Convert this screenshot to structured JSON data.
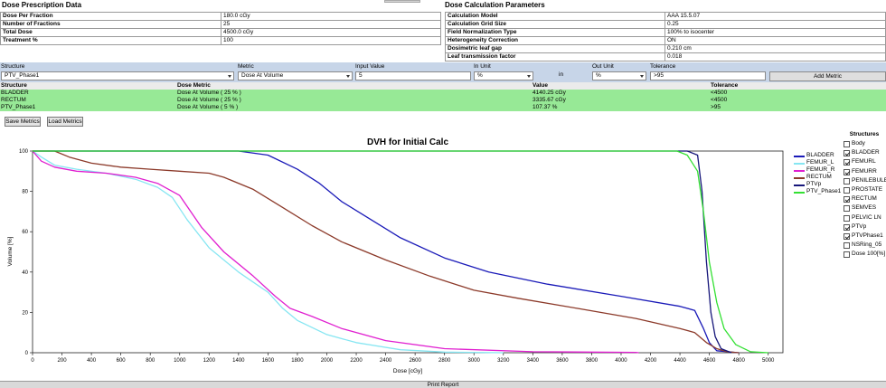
{
  "prescription": {
    "title": "Dose Prescription Data",
    "rows": [
      {
        "key": "Dose Per Fraction",
        "value": "180.0 cGy"
      },
      {
        "key": "Number of Fractions",
        "value": "25"
      },
      {
        "key": "Total Dose",
        "value": "4500.0 cGy"
      },
      {
        "key": "Treatment %",
        "value": "100"
      }
    ]
  },
  "calc_params": {
    "title": "Dose Calculation Parameters",
    "rows": [
      {
        "key": "Calculation Model",
        "value": "AAA 15.5.07"
      },
      {
        "key": "Calculation Grid Size",
        "value": "0.25"
      },
      {
        "key": "Field Normalization Type",
        "value": "100% to isocenter"
      },
      {
        "key": "Heterogeneity Correction",
        "value": "ON"
      },
      {
        "key": "Dosimetric leaf gap",
        "value": "0.210 cm"
      },
      {
        "key": "Leaf transmission factor",
        "value": "0.018"
      }
    ]
  },
  "metric_form": {
    "structure_label": "Structure",
    "structure_value": "PTV_Phase1",
    "metric_label": "Metric",
    "metric_value": "Dose At Volume",
    "input_label": "Input Value",
    "input_value": "5",
    "in_unit_label": "In Unit",
    "in_unit_value": "%",
    "in_text": "in",
    "out_unit_label": "Out Unit",
    "out_unit_value": "%",
    "tolerance_label": "Tolerance",
    "tolerance_value": ">95",
    "add_button": "Add Metric"
  },
  "results": {
    "headers": [
      "Structure",
      "Dose Metric",
      "Value",
      "Tolerance"
    ],
    "rows": [
      {
        "structure": "BLADDER",
        "metric": "Dose At Volume ( 25 % )",
        "value": "4140.25 cGy",
        "tolerance": "<4500"
      },
      {
        "structure": "RECTUM",
        "metric": "Dose At Volume ( 25 % )",
        "value": "3335.67 cGy",
        "tolerance": "<4500"
      },
      {
        "structure": "PTV_Phase1",
        "metric": "Dose At Volume ( 5 % )",
        "value": "107.37 %",
        "tolerance": ">95"
      }
    ]
  },
  "buttons": {
    "save": "Save Metrics",
    "load": "Load Metrics",
    "print": "Print Report"
  },
  "chart_data": {
    "type": "line",
    "title": "DVH for Initial Calc",
    "xlabel": "Dose [cGy]",
    "ylabel": "Volume [%]",
    "xlim": [
      0,
      5100
    ],
    "ylim": [
      0,
      100
    ],
    "xticks": [
      0,
      200,
      400,
      600,
      800,
      1000,
      1200,
      1400,
      1600,
      1800,
      2000,
      2200,
      2400,
      2600,
      2800,
      3000,
      3200,
      3400,
      3600,
      3800,
      4000,
      4200,
      4400,
      4600,
      4800,
      5000
    ],
    "yticks": [
      0,
      20,
      40,
      60,
      80,
      100
    ],
    "grid": false,
    "legend_position": "right",
    "series": [
      {
        "name": "BLADDER",
        "color": "#1a1ab8",
        "points": [
          [
            0,
            100
          ],
          [
            700,
            100
          ],
          [
            1400,
            100
          ],
          [
            1600,
            98
          ],
          [
            1800,
            91
          ],
          [
            1950,
            84
          ],
          [
            2100,
            75
          ],
          [
            2300,
            66
          ],
          [
            2500,
            57
          ],
          [
            2800,
            47
          ],
          [
            3100,
            40
          ],
          [
            3500,
            34
          ],
          [
            4000,
            28
          ],
          [
            4400,
            23
          ],
          [
            4500,
            21
          ],
          [
            4560,
            12
          ],
          [
            4600,
            5
          ],
          [
            4650,
            1
          ],
          [
            4800,
            0
          ]
        ]
      },
      {
        "name": "FEMUR_L",
        "color": "#86e6f2",
        "points": [
          [
            0,
            100
          ],
          [
            60,
            97
          ],
          [
            150,
            93
          ],
          [
            300,
            91
          ],
          [
            500,
            89
          ],
          [
            700,
            86
          ],
          [
            850,
            82
          ],
          [
            950,
            77
          ],
          [
            1050,
            66
          ],
          [
            1200,
            52
          ],
          [
            1400,
            40
          ],
          [
            1600,
            30
          ],
          [
            1700,
            22
          ],
          [
            1800,
            16
          ],
          [
            2000,
            9
          ],
          [
            2200,
            5
          ],
          [
            2500,
            1.5
          ],
          [
            2800,
            0.3
          ],
          [
            3200,
            0
          ]
        ]
      },
      {
        "name": "FEMUR_R",
        "color": "#e01fd0",
        "points": [
          [
            0,
            100
          ],
          [
            60,
            95
          ],
          [
            150,
            92
          ],
          [
            300,
            90
          ],
          [
            500,
            89
          ],
          [
            700,
            87
          ],
          [
            850,
            84
          ],
          [
            1000,
            78
          ],
          [
            1150,
            62
          ],
          [
            1300,
            50
          ],
          [
            1500,
            38
          ],
          [
            1650,
            28
          ],
          [
            1750,
            22
          ],
          [
            1900,
            18
          ],
          [
            2100,
            12
          ],
          [
            2400,
            6
          ],
          [
            2800,
            2
          ],
          [
            3400,
            0.5
          ],
          [
            4100,
            0.2
          ],
          [
            4120,
            0
          ]
        ]
      },
      {
        "name": "RECTUM",
        "color": "#8c3a2a",
        "points": [
          [
            0,
            100
          ],
          [
            150,
            100
          ],
          [
            250,
            97
          ],
          [
            400,
            94
          ],
          [
            600,
            92
          ],
          [
            800,
            91
          ],
          [
            1000,
            90
          ],
          [
            1200,
            89
          ],
          [
            1300,
            87
          ],
          [
            1500,
            81
          ],
          [
            1700,
            72
          ],
          [
            1900,
            63
          ],
          [
            2100,
            55
          ],
          [
            2400,
            46
          ],
          [
            2700,
            38
          ],
          [
            3000,
            31
          ],
          [
            3300,
            27
          ],
          [
            3700,
            22
          ],
          [
            4100,
            17
          ],
          [
            4400,
            12
          ],
          [
            4500,
            10
          ],
          [
            4580,
            5
          ],
          [
            4650,
            2
          ],
          [
            4720,
            0.5
          ],
          [
            4800,
            0
          ]
        ]
      },
      {
        "name": "PTVp",
        "color": "#16167a",
        "points": [
          [
            0,
            100
          ],
          [
            4450,
            100
          ],
          [
            4520,
            98
          ],
          [
            4550,
            80
          ],
          [
            4580,
            45
          ],
          [
            4610,
            20
          ],
          [
            4640,
            8
          ],
          [
            4680,
            2
          ],
          [
            4750,
            0
          ]
        ]
      },
      {
        "name": "PTV_Phase1",
        "color": "#33e033",
        "points": [
          [
            0,
            100
          ],
          [
            4380,
            100
          ],
          [
            4450,
            98
          ],
          [
            4520,
            90
          ],
          [
            4560,
            70
          ],
          [
            4600,
            45
          ],
          [
            4650,
            25
          ],
          [
            4700,
            12
          ],
          [
            4780,
            4
          ],
          [
            4880,
            0.5
          ],
          [
            5000,
            0
          ]
        ]
      }
    ]
  },
  "structures_panel": {
    "title": "Structures",
    "items": [
      {
        "label": "Body",
        "checked": false
      },
      {
        "label": "BLADDER",
        "checked": true
      },
      {
        "label": "FEMURL",
        "checked": true
      },
      {
        "label": "FEMURR",
        "checked": true
      },
      {
        "label": "PENILEBULB",
        "checked": false
      },
      {
        "label": "PROSTATE",
        "checked": false
      },
      {
        "label": "RECTUM",
        "checked": true
      },
      {
        "label": "SEMVES",
        "checked": false
      },
      {
        "label": "PELVIC LN",
        "checked": false
      },
      {
        "label": "PTVp",
        "checked": true
      },
      {
        "label": "PTVPhase1",
        "checked": true
      },
      {
        "label": "NSRing_05",
        "checked": false
      },
      {
        "label": "Dose 100[%]",
        "checked": false
      }
    ]
  }
}
